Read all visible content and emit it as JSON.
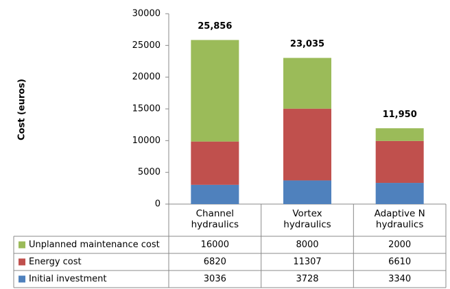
{
  "chart_data": {
    "type": "stacked_bar",
    "y_label": "Cost (euros)",
    "categories": [
      "Channel hydraulics",
      "Vortex hydraulics",
      "Adaptive N hydraulics"
    ],
    "series": [
      {
        "name": "Initial investment",
        "color": "#4f81bd",
        "values": [
          3036,
          3728,
          3340
        ]
      },
      {
        "name": "Energy cost",
        "color": "#c0504d",
        "values": [
          6820,
          11307,
          6610
        ]
      },
      {
        "name": "Unplanned maintenance cost",
        "color": "#9bbb59",
        "values": [
          16000,
          8000,
          2000
        ]
      }
    ],
    "totals": [
      25856,
      23035,
      11950
    ],
    "total_labels": [
      "25,856",
      "23,035",
      "11,950"
    ],
    "ylim": [
      0,
      30000
    ],
    "yticks": [
      0,
      5000,
      10000,
      15000,
      20000,
      25000,
      30000
    ],
    "grid": false,
    "legend": "table"
  }
}
